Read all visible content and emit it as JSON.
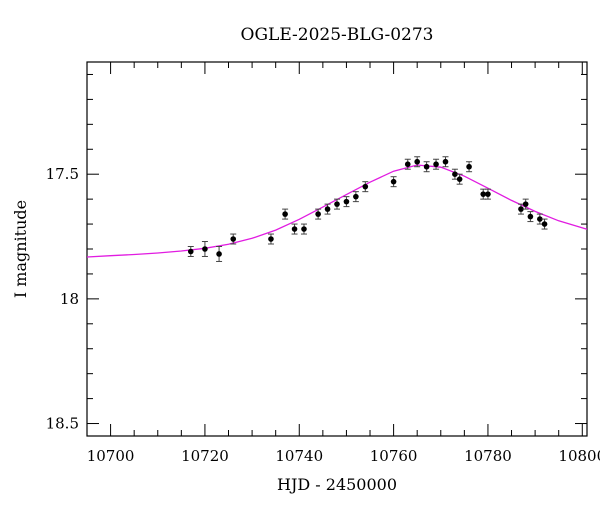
{
  "chart_data": {
    "type": "scatter",
    "title": "OGLE-2025-BLG-0273",
    "xlabel": "HJD - 2450000",
    "ylabel": "I magnitude",
    "xlim": [
      10695,
      10801
    ],
    "ylim": [
      18.55,
      17.05
    ],
    "y_inverted": true,
    "x_ticks": [
      10700,
      10720,
      10740,
      10760,
      10780,
      10800
    ],
    "x_tick_labels": [
      "10700",
      "10720",
      "10740",
      "10760",
      "10780",
      "10800"
    ],
    "y_ticks": [
      17.5,
      18,
      18.5
    ],
    "y_tick_labels": [
      "17.5",
      "18",
      "18.5"
    ],
    "colors": {
      "model": "#e11ce1",
      "points": "#000000",
      "errorbars": "#444444"
    },
    "series": [
      {
        "kind": "points",
        "x": [
          10717,
          10720,
          10723,
          10726,
          10734,
          10737,
          10739,
          10741,
          10744,
          10746,
          10748,
          10750,
          10752,
          10754,
          10760,
          10763,
          10765,
          10767,
          10769,
          10771,
          10773,
          10774,
          10776,
          10779,
          10780,
          10787,
          10788,
          10789,
          10791,
          10792
        ],
        "y": [
          17.81,
          17.8,
          17.82,
          17.76,
          17.76,
          17.66,
          17.72,
          17.72,
          17.66,
          17.64,
          17.62,
          17.61,
          17.59,
          17.55,
          17.53,
          17.46,
          17.45,
          17.47,
          17.46,
          17.45,
          17.5,
          17.52,
          17.47,
          17.58,
          17.58,
          17.64,
          17.62,
          17.67,
          17.68,
          17.7
        ],
        "yerr": [
          0.02,
          0.03,
          0.03,
          0.02,
          0.02,
          0.02,
          0.02,
          0.02,
          0.02,
          0.02,
          0.02,
          0.02,
          0.02,
          0.02,
          0.02,
          0.02,
          0.02,
          0.02,
          0.02,
          0.02,
          0.02,
          0.02,
          0.02,
          0.02,
          0.02,
          0.02,
          0.02,
          0.02,
          0.02,
          0.02
        ]
      },
      {
        "kind": "model",
        "x": [
          10695,
          10700,
          10705,
          10710,
          10715,
          10720,
          10725,
          10730,
          10735,
          10740,
          10745,
          10750,
          10755,
          10760,
          10765,
          10770,
          10775,
          10780,
          10785,
          10790,
          10795,
          10801
        ],
        "y": [
          17.832,
          17.827,
          17.822,
          17.816,
          17.808,
          17.797,
          17.781,
          17.757,
          17.724,
          17.681,
          17.632,
          17.582,
          17.532,
          17.488,
          17.463,
          17.472,
          17.508,
          17.556,
          17.605,
          17.649,
          17.687,
          17.721
        ]
      }
    ]
  }
}
